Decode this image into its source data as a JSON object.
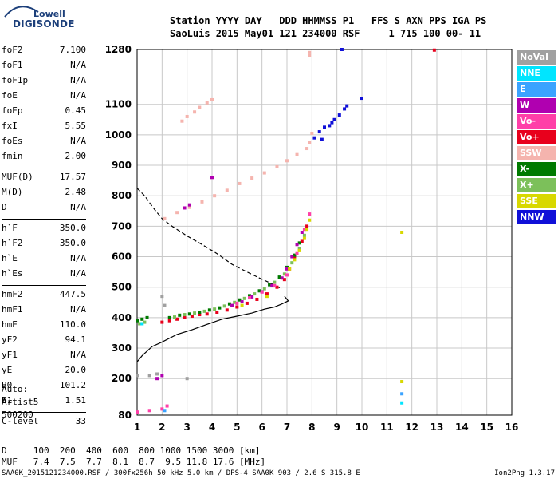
{
  "logo": {
    "line1": "Lowell",
    "line2": "DIGISONDE"
  },
  "header": {
    "line1": "Station YYYY DAY   DDD HHMMSS P1   FFS S AXN PPS IGA PS",
    "line2": "SaoLuis 2015 May01 121 234000 RSF     1 715 100 00- 11"
  },
  "params": [
    {
      "name": "foF2",
      "value": "7.100"
    },
    {
      "name": "foF1",
      "value": "N/A"
    },
    {
      "name": "foF1p",
      "value": "N/A"
    },
    {
      "name": "foE",
      "value": "N/A"
    },
    {
      "name": "foEp",
      "value": "0.45"
    },
    {
      "name": "fxI",
      "value": "5.55"
    },
    {
      "name": "foEs",
      "value": "N/A"
    },
    {
      "name": "fmin",
      "value": "2.00",
      "sep": true
    },
    {
      "name": "MUF(D)",
      "value": "17.57"
    },
    {
      "name": "M(D)",
      "value": "2.48"
    },
    {
      "name": "D",
      "value": "N/A",
      "sep": true
    },
    {
      "name": "h`F",
      "value": "350.0"
    },
    {
      "name": "h`F2",
      "value": "350.0"
    },
    {
      "name": "h`E",
      "value": "N/A"
    },
    {
      "name": "h`Es",
      "value": "N/A",
      "sep": true
    },
    {
      "name": "hmF2",
      "value": "447.5"
    },
    {
      "name": "hmF1",
      "value": "N/A"
    },
    {
      "name": "hmE",
      "value": "110.0"
    },
    {
      "name": "yF2",
      "value": "94.1"
    },
    {
      "name": "yF1",
      "value": "N/A"
    },
    {
      "name": "yE",
      "value": "20.0"
    },
    {
      "name": "B0",
      "value": "101.2"
    },
    {
      "name": "B1",
      "value": "1.51",
      "sep": true
    },
    {
      "name": "C-level",
      "value": "33",
      "sep": true
    }
  ],
  "auto": {
    "line1": "Auto:",
    "line2": "Artist5",
    "line3": "500200"
  },
  "legend": [
    {
      "label": "NoVal",
      "color": "#a0a0a0"
    },
    {
      "label": "NNE",
      "color": "#00e5ff"
    },
    {
      "label": "E",
      "color": "#3aa3ff"
    },
    {
      "label": "W",
      "color": "#b000b0"
    },
    {
      "label": "Vo-",
      "color": "#ff3fa8"
    },
    {
      "label": "Vo+",
      "color": "#e8001c"
    },
    {
      "label": "SSW",
      "color": "#f5b4ae"
    },
    {
      "label": "X-",
      "color": "#007a00"
    },
    {
      "label": "X+",
      "color": "#7cc05a"
    },
    {
      "label": "SSE",
      "color": "#d8d800"
    },
    {
      "label": "NNW",
      "color": "#1010d8"
    }
  ],
  "muf_table": {
    "line1": "D     100  200  400  600  800 1000 1500 3000 [km]",
    "line2": "MUF   7.4  7.5  7.7  8.1  8.7  9.5 11.8 17.6 [MHz]"
  },
  "footer": {
    "left": "SAA0K_2015121234000.RSF / 300fx256h 50 kHz 5.0 km / DPS-4 SAA0K 903 / 2.6 S 315.8 E",
    "right": "Ion2Png 1.3.17"
  },
  "chart_data": {
    "type": "scatter",
    "x_ticks": [
      "1",
      "2",
      "3",
      "4",
      "5",
      "6",
      "7",
      "8",
      "9",
      "10",
      "11",
      "12",
      "13",
      "14",
      "15",
      "16"
    ],
    "y_ticks": [
      "80",
      "200",
      "300",
      "400",
      "500",
      "600",
      "700",
      "800",
      "900",
      "1000",
      "1100",
      "1280"
    ],
    "xlim": [
      1,
      16
    ],
    "ylim": [
      80,
      1280
    ],
    "grid": true,
    "legend_position": "right",
    "series": [
      {
        "name": "SSW",
        "points": [
          [
            2.1,
            725
          ],
          [
            2.6,
            745
          ],
          [
            3.1,
            762
          ],
          [
            3.6,
            780
          ],
          [
            4.1,
            800
          ],
          [
            4.6,
            818
          ],
          [
            5.1,
            840
          ],
          [
            5.6,
            858
          ],
          [
            6.1,
            875
          ],
          [
            6.6,
            895
          ],
          [
            7.0,
            915
          ],
          [
            7.4,
            935
          ],
          [
            7.8,
            955
          ],
          [
            7.9,
            975
          ],
          [
            8.0,
            1005
          ],
          [
            2.8,
            1045
          ],
          [
            3.0,
            1060
          ],
          [
            3.3,
            1075
          ],
          [
            3.5,
            1090
          ],
          [
            3.8,
            1105
          ],
          [
            4.0,
            1115
          ],
          [
            7.9,
            1260
          ],
          [
            7.9,
            1270
          ]
        ]
      },
      {
        "name": "NNW",
        "points": [
          [
            8.4,
            985
          ],
          [
            8.7,
            1030
          ],
          [
            8.9,
            1050
          ],
          [
            9.1,
            1065
          ],
          [
            9.3,
            1085
          ],
          [
            9.4,
            1095
          ],
          [
            10.0,
            1120
          ],
          [
            8.1,
            990
          ],
          [
            8.3,
            1010
          ],
          [
            8.5,
            1025
          ],
          [
            8.8,
            1040
          ],
          [
            9.2,
            1280
          ]
        ]
      },
      {
        "name": "Vo+",
        "points": [
          [
            2.0,
            385
          ],
          [
            2.3,
            390
          ],
          [
            2.6,
            395
          ],
          [
            2.9,
            400
          ],
          [
            3.2,
            405
          ],
          [
            3.5,
            410
          ],
          [
            3.8,
            412
          ],
          [
            4.2,
            418
          ],
          [
            4.6,
            425
          ],
          [
            5.0,
            435
          ],
          [
            5.4,
            447
          ],
          [
            5.8,
            460
          ],
          [
            6.2,
            478
          ],
          [
            6.6,
            500
          ],
          [
            6.9,
            525
          ],
          [
            7.1,
            560
          ],
          [
            7.3,
            600
          ],
          [
            7.6,
            650
          ],
          [
            7.8,
            700
          ],
          [
            12.9,
            1278
          ]
        ]
      },
      {
        "name": "X-",
        "points": [
          [
            2.3,
            400
          ],
          [
            2.7,
            408
          ],
          [
            3.1,
            412
          ],
          [
            3.5,
            418
          ],
          [
            3.9,
            425
          ],
          [
            4.3,
            432
          ],
          [
            4.7,
            445
          ],
          [
            5.1,
            458
          ],
          [
            5.5,
            472
          ],
          [
            5.9,
            488
          ],
          [
            6.3,
            508
          ],
          [
            6.7,
            533
          ],
          [
            7.0,
            565
          ],
          [
            7.3,
            605
          ],
          [
            7.5,
            645
          ],
          [
            1.0,
            390
          ],
          [
            1.2,
            395
          ],
          [
            1.4,
            400
          ]
        ]
      },
      {
        "name": "X+",
        "points": [
          [
            2.5,
            402
          ],
          [
            2.9,
            410
          ],
          [
            3.3,
            415
          ],
          [
            3.7,
            421
          ],
          [
            4.1,
            428
          ],
          [
            4.5,
            438
          ],
          [
            4.9,
            450
          ],
          [
            5.3,
            463
          ],
          [
            5.7,
            478
          ],
          [
            6.1,
            495
          ],
          [
            6.5,
            516
          ],
          [
            6.9,
            543
          ],
          [
            7.2,
            580
          ],
          [
            7.5,
            625
          ],
          [
            7.7,
            670
          ],
          [
            1.1,
            380
          ],
          [
            1.3,
            385
          ]
        ]
      },
      {
        "name": "W",
        "points": [
          [
            4.8,
            440
          ],
          [
            5.2,
            452
          ],
          [
            5.6,
            468
          ],
          [
            6.0,
            485
          ],
          [
            6.4,
            505
          ],
          [
            6.8,
            530
          ],
          [
            7.0,
            560
          ],
          [
            7.2,
            600
          ],
          [
            7.4,
            640
          ],
          [
            7.6,
            680
          ],
          [
            1.8,
            200
          ],
          [
            2.0,
            210
          ],
          [
            3.1,
            770
          ],
          [
            2.9,
            760
          ],
          [
            4.0,
            860
          ]
        ]
      },
      {
        "name": "Vo-",
        "points": [
          [
            5.0,
            447
          ],
          [
            5.5,
            465
          ],
          [
            6.0,
            484
          ],
          [
            6.5,
            505
          ],
          [
            7.0,
            540
          ],
          [
            7.4,
            610
          ],
          [
            7.7,
            690
          ],
          [
            7.9,
            740
          ],
          [
            1.0,
            90
          ],
          [
            1.5,
            95
          ],
          [
            2.0,
            100
          ],
          [
            2.2,
            110
          ]
        ]
      },
      {
        "name": "SSE",
        "points": [
          [
            7.1,
            560
          ],
          [
            7.3,
            590
          ],
          [
            7.5,
            620
          ],
          [
            7.7,
            660
          ],
          [
            7.8,
            690
          ],
          [
            7.9,
            720
          ],
          [
            5.2,
            440
          ],
          [
            6.2,
            470
          ],
          [
            11.6,
            190
          ],
          [
            11.6,
            680
          ]
        ]
      },
      {
        "name": "E",
        "points": [
          [
            11.6,
            150
          ],
          [
            2.1,
            95
          ]
        ]
      },
      {
        "name": "NNE",
        "points": [
          [
            11.6,
            120
          ],
          [
            1.2,
            380
          ]
        ]
      },
      {
        "name": "NoVal",
        "points": [
          [
            1.5,
            210
          ],
          [
            1.8,
            215
          ],
          [
            2.1,
            440
          ],
          [
            2.0,
            470
          ],
          [
            1.0,
            210
          ],
          [
            3.0,
            200
          ]
        ]
      }
    ],
    "lines": [
      {
        "style": "solid",
        "points": [
          [
            1.0,
            255
          ],
          [
            1.2,
            275
          ],
          [
            1.6,
            305
          ],
          [
            2.0,
            320
          ],
          [
            2.6,
            345
          ],
          [
            3.2,
            360
          ],
          [
            3.8,
            378
          ],
          [
            4.4,
            395
          ],
          [
            5.0,
            405
          ],
          [
            5.6,
            415
          ],
          [
            6.1,
            428
          ],
          [
            6.5,
            435
          ],
          [
            6.8,
            445
          ],
          [
            7.05,
            455
          ],
          [
            6.9,
            470
          ]
        ]
      },
      {
        "style": "dashed",
        "points": [
          [
            1.0,
            825
          ],
          [
            1.3,
            800
          ],
          [
            1.7,
            755
          ],
          [
            2.0,
            725
          ],
          [
            2.4,
            700
          ],
          [
            3.0,
            668
          ],
          [
            3.6,
            640
          ],
          [
            4.2,
            610
          ],
          [
            4.8,
            575
          ],
          [
            5.4,
            550
          ],
          [
            5.9,
            530
          ],
          [
            6.3,
            515
          ],
          [
            6.6,
            502
          ],
          [
            6.8,
            495
          ]
        ]
      }
    ]
  }
}
